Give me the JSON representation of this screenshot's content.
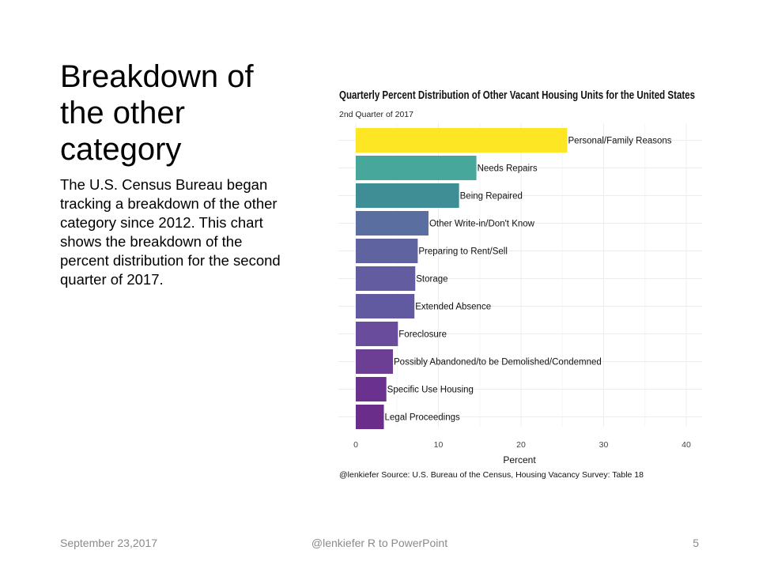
{
  "slide": {
    "title": "Breakdown of the other category",
    "body": "The U.S. Census Bureau began tracking a breakdown of the other category since 2012. This chart shows the breakdown of the percent distribution for the second quarter of 2017.",
    "footer_date": "September 23,2017",
    "footer_center": "@lenkiefer R to PowerPoint",
    "page_number": "5"
  },
  "chart_data": {
    "type": "bar",
    "orientation": "horizontal",
    "title": "Quarterly Percent Distribution of Other Vacant Housing Units for the United States",
    "subtitle": "2nd Quarter of 2017",
    "xlabel": "Percent",
    "ylabel": "",
    "caption": "@lenkiefer Source: U.S. Bureau of the Census, Housing Vacancy Survey: Table 18",
    "xlim": [
      0,
      42
    ],
    "x_ticks": [
      0,
      10,
      20,
      30,
      40
    ],
    "grid": true,
    "categories": [
      "Personal/Family Reasons",
      "Needs Repairs",
      "Being Repaired",
      "Other Write-in/Don't Know",
      "Preparing to Rent/Sell",
      "Storage",
      "Extended Absence",
      "Foreclosure",
      "Possibly Abandoned/to be Demolished/Condemned",
      "Specific Use Housing",
      "Legal Proceedings"
    ],
    "values": [
      25.6,
      14.6,
      12.5,
      8.8,
      7.5,
      7.2,
      7.1,
      5.1,
      4.5,
      3.7,
      3.4
    ],
    "colors": [
      "#fde725",
      "#46a79a",
      "#3f8e96",
      "#5a6ea0",
      "#5f63a0",
      "#635ca0",
      "#625aa0",
      "#6a4c9c",
      "#6c3f94",
      "#6a318f",
      "#6a2d8a"
    ]
  }
}
